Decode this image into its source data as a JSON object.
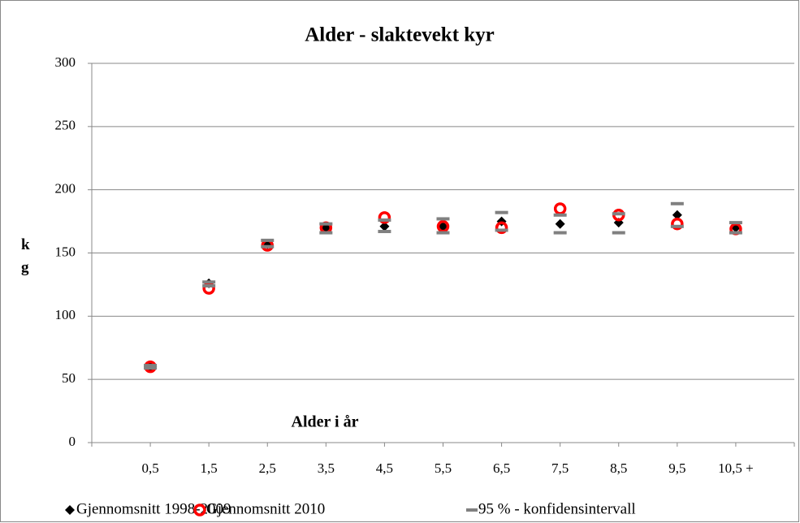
{
  "chart_data": {
    "type": "scatter",
    "title": "Alder - slaktevekt kyr",
    "x_label": "Alder i år",
    "y_label": "kg",
    "categories": [
      "0,5",
      "1,5",
      "2,5",
      "3,5",
      "4,5",
      "5,5",
      "6,5",
      "7,5",
      "8,5",
      "9,5",
      "10,5 +"
    ],
    "series": [
      {
        "name": "Gjennomsnitt 1998-2009",
        "color": "#000000",
        "marker": "diamond",
        "values": [
          60,
          126,
          157,
          170,
          171,
          171,
          175,
          173,
          174,
          180,
          170
        ]
      },
      {
        "name": "Gjennomsnitt 2010",
        "color": "#ff0000",
        "marker": "circle",
        "values": [
          60,
          122,
          156,
          170,
          178,
          171,
          170,
          185,
          180,
          173,
          169
        ]
      },
      {
        "name": "95 % - konfidensintervall",
        "color": "#808080",
        "marker": "dash",
        "lower": [
          59,
          124,
          155,
          166,
          167,
          166,
          168,
          166,
          166,
          171,
          166
        ],
        "upper": [
          61,
          127,
          160,
          173,
          176,
          177,
          182,
          180,
          181,
          189,
          174
        ]
      }
    ],
    "ylim": [
      0,
      300
    ],
    "yticks": [
      0,
      50,
      100,
      150,
      200,
      250,
      300
    ],
    "grid": true,
    "legend": "bottom"
  }
}
